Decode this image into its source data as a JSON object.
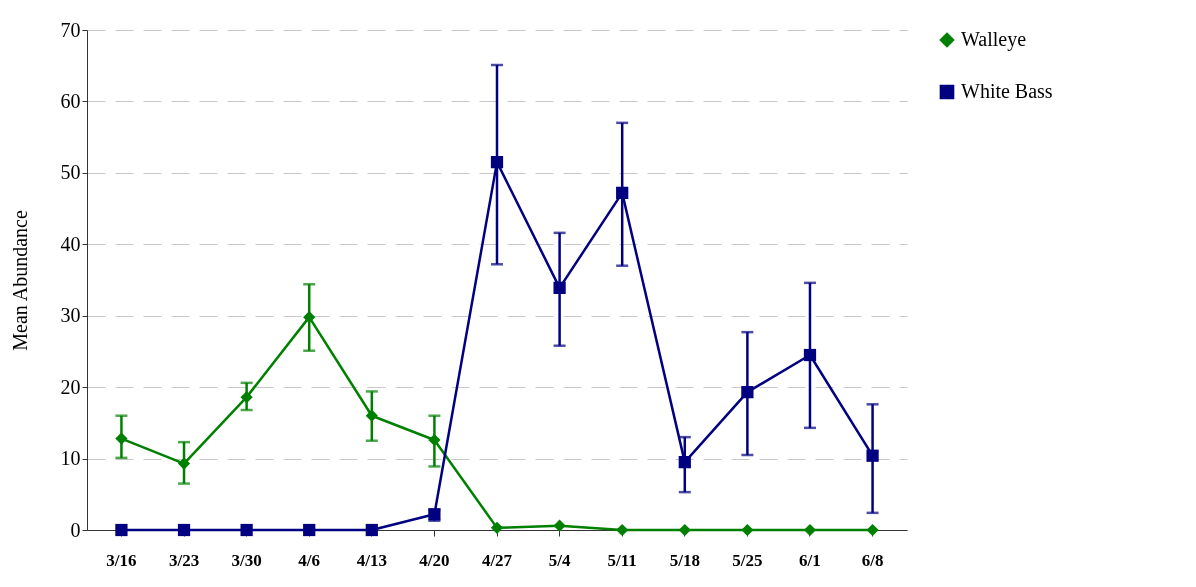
{
  "chart_data": {
    "type": "line",
    "ylabel": "Mean Abundance",
    "categories": [
      "3/16",
      "3/23",
      "3/30",
      "4/6",
      "4/13",
      "4/20",
      "4/27",
      "5/4",
      "5/11",
      "5/18",
      "5/25",
      "6/1",
      "6/8"
    ],
    "series": [
      {
        "name": "Walleye",
        "color": "#008000",
        "marker": "diamond",
        "values": [
          12.8,
          9.3,
          18.6,
          29.8,
          16.0,
          12.6,
          0.3,
          0.6,
          0,
          0,
          0,
          0,
          0
        ],
        "errors": [
          [
            10.1,
            16.0
          ],
          [
            6.5,
            12.3
          ],
          [
            16.8,
            20.6
          ],
          [
            25.1,
            34.4
          ],
          [
            12.5,
            19.4
          ],
          [
            8.9,
            16.0
          ],
          null,
          null,
          null,
          null,
          null,
          null,
          null
        ]
      },
      {
        "name": "White Bass",
        "color": "#000080",
        "marker": "square",
        "values": [
          0,
          0,
          0,
          0,
          0,
          2.2,
          51.5,
          33.9,
          47.2,
          9.5,
          19.3,
          24.5,
          10.4
        ],
        "errors": [
          null,
          null,
          null,
          null,
          null,
          [
            1.3,
            2.8
          ],
          [
            37.2,
            65.1
          ],
          [
            25.8,
            41.6
          ],
          [
            37.0,
            57.0
          ],
          [
            5.3,
            13.0
          ],
          [
            10.5,
            27.7
          ],
          [
            14.3,
            34.6
          ],
          [
            2.4,
            17.6
          ]
        ]
      }
    ],
    "ylim": [
      0,
      70
    ],
    "yticks": [
      0,
      10,
      20,
      30,
      40,
      50,
      60,
      70
    ],
    "grid": "y",
    "legend": "right",
    "line_style": "solid"
  }
}
